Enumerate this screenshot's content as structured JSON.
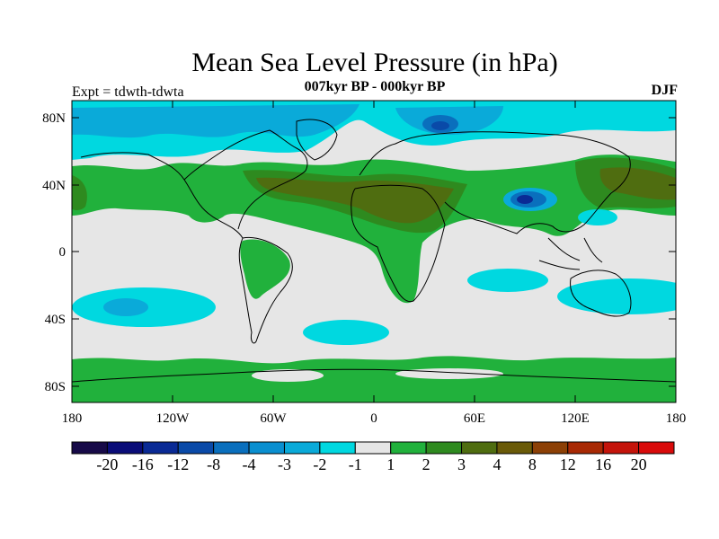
{
  "title": "Mean Sea Level Pressure (in hPa)",
  "subtitle": "007kyr BP - 000kyr BP",
  "experiment": "Expt = tdwth-tdwta",
  "season": "DJF",
  "lat_ticks": [
    "80N",
    "40N",
    "0",
    "40S",
    "80S"
  ],
  "lon_ticks": [
    "180",
    "120W",
    "60W",
    "0",
    "60E",
    "120E",
    "180"
  ],
  "colorbar": {
    "colors": [
      "#170a48",
      "#0a0c78",
      "#0a2a95",
      "#0a4aa8",
      "#0a6fbd",
      "#0a8fd0",
      "#0aaad9",
      "#00d8e0",
      "#e6e6e6",
      "#21b13c",
      "#2e8a1f",
      "#4f6d10",
      "#6a5a08",
      "#8c4006",
      "#a82904",
      "#c4140b",
      "#d90b0b"
    ],
    "labels": [
      "-20",
      "-16",
      "-12",
      "-8",
      "-4",
      "-3",
      "-2",
      "-1",
      "1",
      "2",
      "3",
      "4",
      "8",
      "12",
      "16",
      "20"
    ]
  },
  "palette": {
    "neutral": "#e6e6e6",
    "pos1": "#21b13c",
    "pos2": "#2e8a1f",
    "pos3": "#4f6d10",
    "pos4": "#6a5a08",
    "neg1": "#00d8e0",
    "neg2": "#0aaad9",
    "neg3": "#0a8fd0",
    "neg4": "#0a4aa8"
  }
}
